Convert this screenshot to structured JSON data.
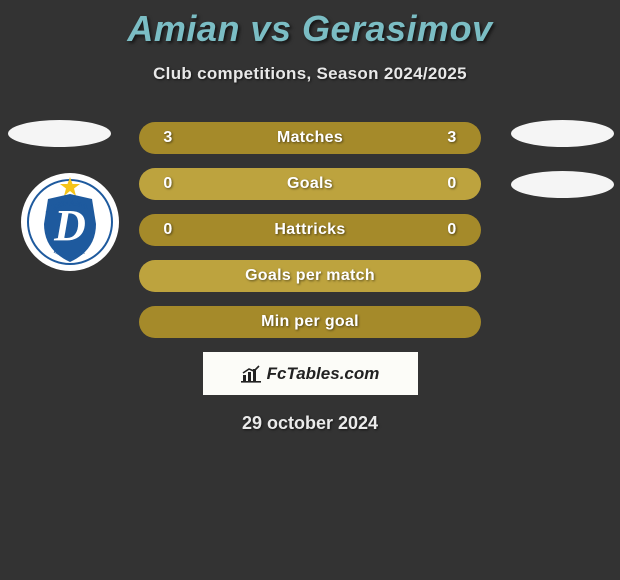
{
  "title": "Amian vs Gerasimov",
  "subtitle": "Club competitions, Season 2024/2025",
  "date": "29 october 2024",
  "watermark": "FcTables.com",
  "colors": {
    "title": "#7bbdc4",
    "row": "#a58a2a",
    "row_alt": "#bda33e",
    "logo_blue": "#1e5a9e",
    "logo_star": "#f5c418"
  },
  "rows": [
    {
      "label": "Matches",
      "left": "3",
      "right": "3",
      "bg": "row",
      "show_vals": true
    },
    {
      "label": "Goals",
      "left": "0",
      "right": "0",
      "bg": "row_alt",
      "show_vals": true
    },
    {
      "label": "Hattricks",
      "left": "0",
      "right": "0",
      "bg": "row",
      "show_vals": true
    },
    {
      "label": "Goals per match",
      "left": "",
      "right": "",
      "bg": "row_alt",
      "show_vals": false
    },
    {
      "label": "Min per goal",
      "left": "",
      "right": "",
      "bg": "row",
      "show_vals": false
    }
  ],
  "club_logo": {
    "name": "Dinamo Minsk",
    "letter": "D"
  }
}
